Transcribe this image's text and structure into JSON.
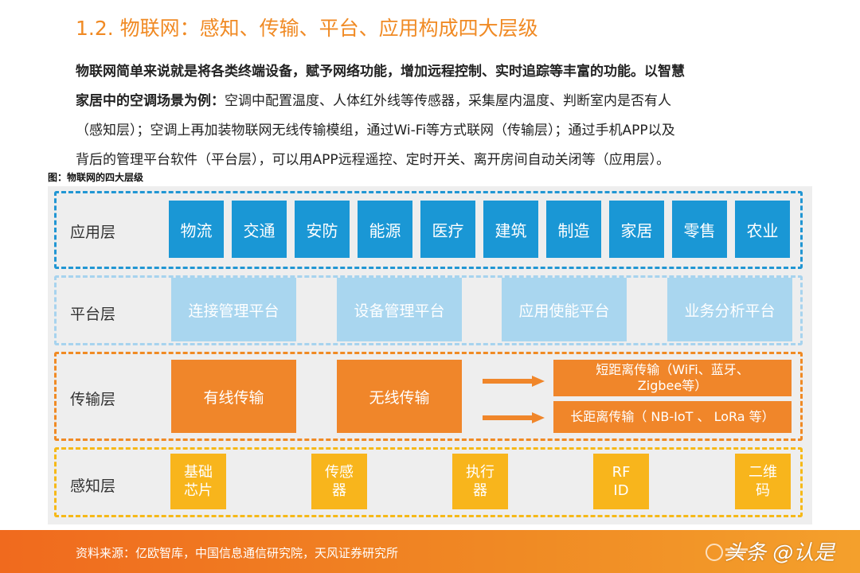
{
  "title": "1.2. 物联网：感知、传输、平台、应用构成四大层级",
  "paragraph": {
    "bold": "物联网简单来说就是将各类终端设备，赋予网络功能，增加远程控制、实时追踪等丰富的功能。以智慧家居中的空调场景为例：",
    "line1": "物联网简单来说就是将各类终端设备，赋予网络功能，增加远程控制、实时追踪等丰富的功能。以智慧",
    "line2_bold": "家居中的空调场景为例：",
    "line2_rest": "空调中配置温度、人体红外线等传感器，采集屋内温度、判断室内是否有人",
    "line3": "（感知层）；空调上再加装物联网无线传输模组，通过Wi-Fi等方式联网（传输层）；通过手机APP以及",
    "line4": "背后的管理平台软件（平台层），可以用APP远程遥控、定时开关、离开房间自动关闭等（应用层）。"
  },
  "figure_caption": "图：物联网的四大层级",
  "diagram": {
    "application": {
      "label": "应用层",
      "items": [
        "物流",
        "交通",
        "安防",
        "能源",
        "医疗",
        "建筑",
        "制造",
        "家居",
        "零售",
        "农业"
      ]
    },
    "platform": {
      "label": "平台层",
      "items": [
        "连接管理平台",
        "设备管理平台",
        "应用使能平台",
        "业务分析平台"
      ]
    },
    "transport": {
      "label": "传输层",
      "wired": "有线传输",
      "wireless": "无线传输",
      "short_range_1": "短距离传输（WiFi、蓝牙、",
      "short_range_2": "Zigbee等）",
      "long_range": "长距离传输（ NB-IoT 、 LoRa 等）"
    },
    "perception": {
      "label": "感知层",
      "items": [
        [
          "基础",
          "芯片"
        ],
        [
          "传感",
          "器"
        ],
        [
          "执行",
          "器"
        ],
        [
          "RF",
          "ID"
        ],
        [
          "二维",
          "码"
        ]
      ]
    }
  },
  "footer": {
    "source": "资料来源：亿欧智库，中国信息通信研究院，天风证券研究所",
    "watermark": "头条 @认是"
  },
  "colors": {
    "title": "#f08a24",
    "application": "#1a97d5",
    "platform": "#a9d6ef",
    "transport": "#f0862a",
    "perception": "#f8b51c"
  }
}
